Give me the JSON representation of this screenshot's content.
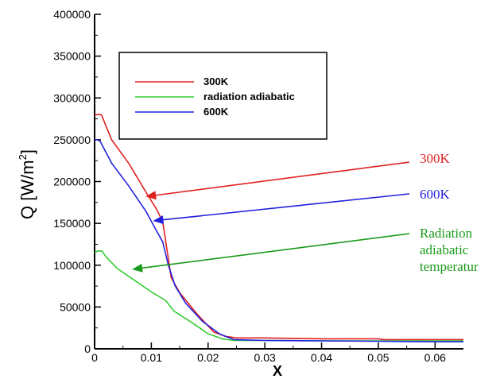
{
  "chart_data": {
    "type": "line",
    "xlabel": "X",
    "ylabel_main": "Q [W/m",
    "ylabel_sup": "2",
    "ylabel_close": "]",
    "xlim": [
      0,
      0.065
    ],
    "ylim": [
      0,
      400000
    ],
    "xticks": [
      0,
      0.01,
      0.02,
      0.03,
      0.04,
      0.05,
      0.06
    ],
    "xtick_labels": [
      "0",
      "0.01",
      "0.02",
      "0.03",
      "0.04",
      "0.05",
      "0.06"
    ],
    "yticks": [
      0,
      50000,
      100000,
      150000,
      200000,
      250000,
      300000,
      350000,
      400000
    ],
    "ytick_labels": [
      "0",
      "50000",
      "100000",
      "150000",
      "200000",
      "250000",
      "300000",
      "350000",
      "400000"
    ],
    "grid": false,
    "legend_position": "top-left",
    "series": [
      {
        "name": "300K",
        "color": "#e02020",
        "x": [
          0,
          0.0012,
          0.003,
          0.006,
          0.009,
          0.011,
          0.012,
          0.0135,
          0.015,
          0.018,
          0.021,
          0.023,
          0.025,
          0.03,
          0.04,
          0.05,
          0.051,
          0.06,
          0.065
        ],
        "y": [
          280000,
          280000,
          250000,
          222000,
          188000,
          166000,
          152000,
          85000,
          67000,
          42000,
          20000,
          15000,
          13000,
          13000,
          12000,
          12000,
          11000,
          11000,
          11000
        ]
      },
      {
        "name": "radiation adiabatic",
        "color": "#33cc33",
        "x": [
          0,
          0.0005,
          0.0013,
          0.002,
          0.004,
          0.007,
          0.01,
          0.0125,
          0.014,
          0.017,
          0.02,
          0.0225,
          0.0245,
          0.03,
          0.04,
          0.05,
          0.06,
          0.065
        ],
        "y": [
          115000,
          117000,
          117000,
          110000,
          96000,
          82000,
          68000,
          58000,
          45000,
          32000,
          18000,
          12000,
          10000,
          10000,
          9500,
          9500,
          9500,
          9500
        ]
      },
      {
        "name": "600K",
        "color": "#2222dd",
        "x": [
          0,
          0.0005,
          0.001,
          0.003,
          0.006,
          0.009,
          0.011,
          0.012,
          0.013,
          0.0142,
          0.016,
          0.019,
          0.022,
          0.0245,
          0.03,
          0.04,
          0.05,
          0.06,
          0.065
        ],
        "y": [
          250000,
          250000,
          248000,
          222000,
          195000,
          165000,
          140000,
          128000,
          100000,
          75000,
          55000,
          33000,
          18000,
          11000,
          10000,
          9500,
          9000,
          8500,
          8500
        ]
      }
    ],
    "annotations": [
      {
        "lines": [
          "300K"
        ],
        "color": "#e02020",
        "target_x": 0.009,
        "target_y": 182000
      },
      {
        "lines": [
          "600K"
        ],
        "color": "#2020dd",
        "target_x": 0.0103,
        "target_y": 153000
      },
      {
        "lines": [
          "Radiation",
          "adiabatic",
          "temperatur"
        ],
        "color": "#1a9a1a",
        "target_x": 0.0066,
        "target_y": 95000
      }
    ]
  }
}
